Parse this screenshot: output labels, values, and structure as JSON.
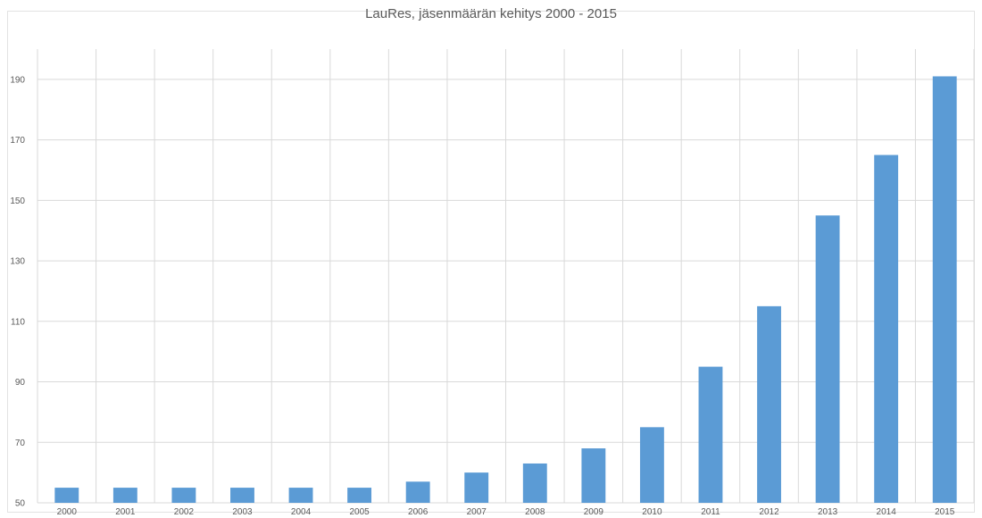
{
  "chart_data": {
    "type": "bar",
    "title": "LauRes, jäsenmäärän kehitys 2000 - 2015",
    "xlabel": "",
    "ylabel": "",
    "categories": [
      "2000",
      "2001",
      "2002",
      "2003",
      "2004",
      "2005",
      "2006",
      "2007",
      "2008",
      "2009",
      "2010",
      "2011",
      "2012",
      "2013",
      "2014",
      "2015"
    ],
    "values": [
      55,
      55,
      55,
      55,
      55,
      55,
      57,
      60,
      63,
      68,
      75,
      95,
      115,
      145,
      165,
      191
    ],
    "ylim": [
      50,
      200
    ],
    "yticks": [
      "50",
      "70",
      "90",
      "110",
      "130",
      "150",
      "170",
      "190"
    ],
    "grid": true,
    "bar_color": "#5b9bd5",
    "grid_color": "#d9d9d9"
  }
}
